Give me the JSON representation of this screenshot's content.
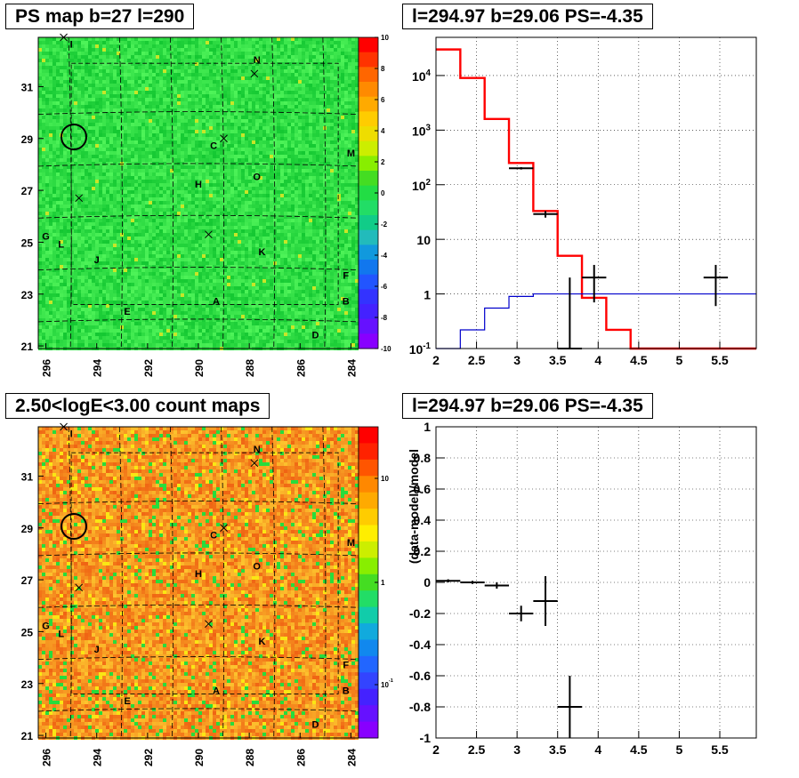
{
  "panels": {
    "ps_map_title": "PS map b=27 l=290",
    "spectrum_title": "l=294.97 b=29.06 PS=-4.35",
    "count_map_title": "2.50<logE<3.00 count maps",
    "residual_title": "l=294.97 b=29.06 PS=-4.35"
  },
  "colors": {
    "model": "#ff0000",
    "background_model": "#0000cc",
    "data": "#000000",
    "ps_map_base": "#22dd44",
    "count_map_base": "#f2a020"
  },
  "chart_data": [
    {
      "type": "heatmap",
      "name": "PS map",
      "title": "PS map b=27 l=290",
      "x_tick_labels": [
        "296",
        "294",
        "292",
        "290",
        "288",
        "286",
        "284"
      ],
      "y_tick_labels": [
        "21",
        "23",
        "25",
        "27",
        "29",
        "31"
      ],
      "xlim": [
        296.3,
        283.7
      ],
      "ylim": [
        20.9,
        32.9
      ],
      "z_range": [
        -10,
        10
      ],
      "colorbar_ticks": [
        "10",
        "8",
        "6",
        "4",
        "2",
        "0",
        "-2",
        "-4",
        "-6",
        "-8",
        "-10"
      ],
      "source_labels": [
        {
          "label": "I",
          "l": 295.0,
          "b": 32.5
        },
        {
          "label": "N",
          "l": 287.7,
          "b": 31.9
        },
        {
          "label": "C",
          "l": 289.4,
          "b": 28.6
        },
        {
          "label": "M",
          "l": 284.0,
          "b": 28.3
        },
        {
          "label": "O",
          "l": 287.7,
          "b": 27.4
        },
        {
          "label": "H",
          "l": 290.0,
          "b": 27.1
        },
        {
          "label": "G",
          "l": 296.0,
          "b": 25.1
        },
        {
          "label": "L",
          "l": 295.4,
          "b": 24.8
        },
        {
          "label": "K",
          "l": 287.5,
          "b": 24.5
        },
        {
          "label": "J",
          "l": 294.0,
          "b": 24.2
        },
        {
          "label": "F",
          "l": 284.2,
          "b": 23.6
        },
        {
          "label": "A",
          "l": 289.3,
          "b": 22.6
        },
        {
          "label": "B",
          "l": 284.2,
          "b": 22.6
        },
        {
          "label": "E",
          "l": 292.8,
          "b": 22.2
        },
        {
          "label": "D",
          "l": 285.4,
          "b": 21.3
        }
      ],
      "x_markers": [
        {
          "l": 295.3,
          "b": 32.9
        },
        {
          "l": 287.8,
          "b": 31.5
        },
        {
          "l": 289.0,
          "b": 29.0
        },
        {
          "l": 294.7,
          "b": 26.7
        },
        {
          "l": 289.6,
          "b": 25.3
        }
      ],
      "circle": {
        "l": 294.97,
        "b": 29.06
      }
    },
    {
      "type": "line",
      "name": "spectrum",
      "title": "l=294.97 b=29.06 PS=-4.35",
      "xlim": [
        2,
        5.95
      ],
      "ylim_log": [
        0.1,
        50000
      ],
      "x_tick_labels": [
        "2",
        "2.5",
        "3",
        "3.5",
        "4",
        "4.5",
        "5",
        "5.5"
      ],
      "y_tick_labels": [
        "10^-1",
        "1",
        "10",
        "10^2",
        "10^3",
        "10^4"
      ],
      "y_log": true,
      "grid": true,
      "series": [
        {
          "role": "model",
          "style": "step",
          "bin_edges": [
            2.0,
            2.3,
            2.6,
            2.9,
            3.2,
            3.5,
            3.8,
            4.1,
            4.4,
            4.7,
            5.0,
            5.3,
            5.6,
            5.95
          ],
          "values": [
            30000,
            9000,
            1600,
            250,
            33,
            5,
            0.85,
            0.22,
            0.1,
            0.1,
            0.1,
            0.1,
            0.1
          ]
        },
        {
          "role": "background_model",
          "style": "step",
          "bin_edges": [
            2.0,
            2.3,
            2.6,
            2.9,
            3.2,
            3.5,
            3.8,
            4.1,
            4.4,
            4.7,
            5.0,
            5.3,
            5.6,
            5.95
          ],
          "values": [
            0.1,
            0.22,
            0.55,
            0.9,
            1.0,
            1.0,
            1.0,
            1.0,
            1.0,
            1.0,
            1.0,
            1.0,
            1.0
          ]
        },
        {
          "role": "data",
          "style": "errorbar",
          "points": [
            {
              "x": 3.05,
              "xerr": 0.15,
              "y": 200,
              "ylo": 190,
              "yhi": 210
            },
            {
              "x": 3.35,
              "xerr": 0.15,
              "y": 29,
              "ylo": 25,
              "yhi": 33
            },
            {
              "x": 3.65,
              "xerr": 0.15,
              "y": 0.1,
              "ylo": 0.1,
              "yhi": 2.0
            },
            {
              "x": 3.95,
              "xerr": 0.15,
              "y": 2.0,
              "ylo": 0.7,
              "yhi": 3.4
            },
            {
              "x": 5.45,
              "xerr": 0.15,
              "y": 2.0,
              "ylo": 0.6,
              "yhi": 3.4
            }
          ]
        }
      ]
    },
    {
      "type": "heatmap",
      "name": "count map",
      "title": "2.50<logE<3.00 count maps",
      "x_tick_labels": [
        "296",
        "294",
        "292",
        "290",
        "288",
        "286",
        "284"
      ],
      "y_tick_labels": [
        "21",
        "23",
        "25",
        "27",
        "29",
        "31"
      ],
      "xlim": [
        296.3,
        283.7
      ],
      "ylim": [
        20.9,
        32.9
      ],
      "z_log": true,
      "colorbar_ticks": [
        "10",
        "1",
        "10^-1"
      ],
      "source_labels": [
        {
          "label": "I",
          "l": 295.0,
          "b": 32.5
        },
        {
          "label": "N",
          "l": 287.7,
          "b": 31.9
        },
        {
          "label": "C",
          "l": 289.4,
          "b": 28.6
        },
        {
          "label": "M",
          "l": 284.0,
          "b": 28.3
        },
        {
          "label": "O",
          "l": 287.7,
          "b": 27.4
        },
        {
          "label": "H",
          "l": 290.0,
          "b": 27.1
        },
        {
          "label": "G",
          "l": 296.0,
          "b": 25.1
        },
        {
          "label": "L",
          "l": 295.4,
          "b": 24.8
        },
        {
          "label": "K",
          "l": 287.5,
          "b": 24.5
        },
        {
          "label": "J",
          "l": 294.0,
          "b": 24.2
        },
        {
          "label": "F",
          "l": 284.2,
          "b": 23.6
        },
        {
          "label": "A",
          "l": 289.3,
          "b": 22.6
        },
        {
          "label": "B",
          "l": 284.2,
          "b": 22.6
        },
        {
          "label": "E",
          "l": 292.8,
          "b": 22.2
        },
        {
          "label": "D",
          "l": 285.4,
          "b": 21.3
        }
      ],
      "x_markers": [
        {
          "l": 295.3,
          "b": 32.9
        },
        {
          "l": 287.8,
          "b": 31.5
        },
        {
          "l": 289.0,
          "b": 29.0
        },
        {
          "l": 294.7,
          "b": 26.7
        },
        {
          "l": 289.6,
          "b": 25.3
        }
      ],
      "circle": {
        "l": 294.97,
        "b": 29.06
      }
    },
    {
      "type": "scatter",
      "name": "residuals",
      "title": "l=294.97 b=29.06 PS=-4.35",
      "ylabel": "(data-model)/model",
      "xlim": [
        2,
        5.95
      ],
      "ylim": [
        -1,
        1
      ],
      "x_tick_labels": [
        "2",
        "2.5",
        "3",
        "3.5",
        "4",
        "4.5",
        "5",
        "5.5"
      ],
      "y_tick_labels": [
        "1",
        "0.8",
        "0.6",
        "0.4",
        "0.2",
        "0",
        "-0.2",
        "-0.4",
        "-0.6",
        "-0.8",
        "-1"
      ],
      "grid": true,
      "points": [
        {
          "x": 2.15,
          "xerr": 0.15,
          "y": 0.01,
          "yerr": 0.01
        },
        {
          "x": 2.45,
          "xerr": 0.15,
          "y": 0.0,
          "yerr": 0.01
        },
        {
          "x": 2.75,
          "xerr": 0.15,
          "y": -0.02,
          "yerr": 0.02
        },
        {
          "x": 3.05,
          "xerr": 0.15,
          "y": -0.2,
          "yerr": 0.05
        },
        {
          "x": 3.35,
          "xerr": 0.15,
          "y": -0.12,
          "yerr": 0.16
        },
        {
          "x": 3.65,
          "xerr": 0.15,
          "y": -0.8,
          "yerr": 0.2
        }
      ]
    }
  ]
}
